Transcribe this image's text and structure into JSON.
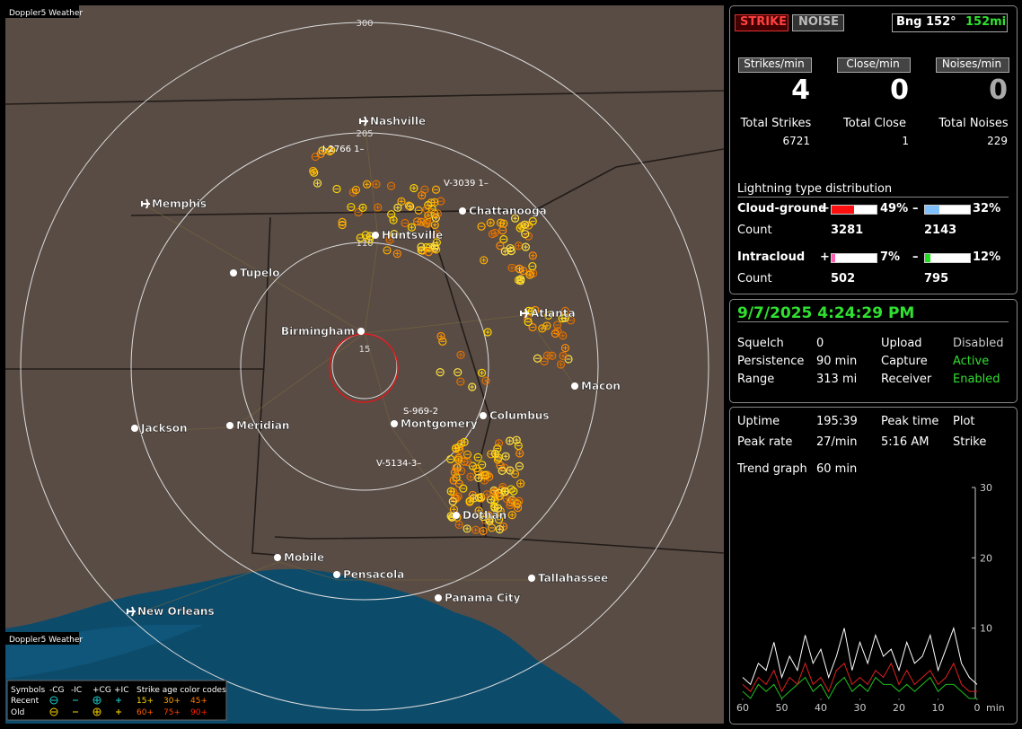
{
  "window_title": "Doppler5 Weather",
  "map": {
    "ring_labels": [
      "300",
      "205",
      "110",
      "15"
    ],
    "cities": [
      "Nashville",
      "Memphis",
      "Chattanooga",
      "Huntsville",
      "Tupelo",
      "Atlanta",
      "Birmingham",
      "Macon",
      "Columbus",
      "Montgomery",
      "Jackson",
      "Meridian",
      "Dothan",
      "Mobile",
      "Pensacola",
      "Tallahassee",
      "Panama City",
      "New Orleans"
    ],
    "strike_labels": [
      "I-2766 1–",
      "V-3039 1–",
      "S-969-2",
      "V-5134-3–"
    ],
    "legend": {
      "symbols": "Symbols",
      "cols": [
        "-CG",
        "-IC",
        "+CG",
        "+IC"
      ],
      "age_title": "Strike age color codes",
      "rows": [
        {
          "label": "Recent",
          "ages": [
            "15+",
            "30+",
            "45+"
          ]
        },
        {
          "label": "Old",
          "ages": [
            "60+",
            "75+",
            "90+"
          ]
        }
      ]
    }
  },
  "status": {
    "strike": "STRIKE",
    "noise": "NOISE",
    "bearing": "Bng 152°",
    "distance": "152mi"
  },
  "rates": [
    {
      "label": "Strikes/min",
      "value": 4,
      "total_label": "Total Strikes",
      "total": 6721
    },
    {
      "label": "Close/min",
      "value": 0,
      "total_label": "Total Close",
      "total": 1
    },
    {
      "label": "Noises/min",
      "value": 0,
      "total_label": "Total Noises",
      "total": 229
    }
  ],
  "distribution": {
    "title": "Lightning type distribution",
    "count_label": "Count",
    "types": [
      {
        "name": "Cloud-ground",
        "pos": {
          "sign": "+",
          "pct": 49,
          "label": "49%",
          "count": 3281
        },
        "neg": {
          "sign": "–",
          "pct": 32,
          "label": "32%",
          "count": 2143
        }
      },
      {
        "name": "Intracloud",
        "pos": {
          "sign": "+",
          "pct": 7,
          "label": "7%",
          "count": 502
        },
        "neg": {
          "sign": "–",
          "pct": 12,
          "label": "12%",
          "count": 795
        }
      }
    ]
  },
  "settings": {
    "datetime": "9/7/2025 4:24:29 PM",
    "rows": [
      [
        "Squelch",
        "0",
        "Upload",
        "Disabled"
      ],
      [
        "Persistence",
        "90 min",
        "Capture",
        "Active"
      ],
      [
        "Range",
        "313 mi",
        "Receiver",
        "Enabled"
      ]
    ]
  },
  "stats": {
    "rows": [
      [
        "Uptime",
        "195:39",
        "Peak time",
        "Plot"
      ],
      [
        "Peak rate",
        "27/min",
        "5:16 AM",
        "Strike"
      ]
    ],
    "trend_label": "Trend graph",
    "trend_value": "60 min"
  },
  "chart_data": {
    "type": "line",
    "xlabel": "min",
    "x": [
      60,
      58,
      56,
      54,
      52,
      50,
      48,
      46,
      44,
      42,
      40,
      38,
      36,
      34,
      32,
      30,
      28,
      26,
      24,
      22,
      20,
      18,
      16,
      14,
      12,
      10,
      8,
      6,
      4,
      2,
      0
    ],
    "xlim": [
      60,
      0
    ],
    "xticks": [
      60,
      50,
      40,
      30,
      20,
      10,
      0
    ],
    "ylim": [
      0,
      30
    ],
    "yticks": [
      10,
      20,
      30
    ],
    "series": [
      {
        "color": "#ffffff",
        "values": [
          3,
          2,
          5,
          4,
          8,
          3,
          6,
          4,
          9,
          5,
          7,
          3,
          6,
          10,
          4,
          8,
          5,
          9,
          6,
          7,
          4,
          8,
          5,
          6,
          9,
          4,
          7,
          10,
          5,
          3,
          2
        ]
      },
      {
        "color": "#e02020",
        "values": [
          2,
          1,
          3,
          2,
          4,
          1,
          3,
          2,
          5,
          2,
          3,
          1,
          4,
          5,
          2,
          3,
          2,
          4,
          3,
          5,
          2,
          4,
          2,
          3,
          4,
          2,
          3,
          5,
          2,
          1,
          1
        ]
      },
      {
        "color": "#20c020",
        "values": [
          1,
          0,
          2,
          1,
          2,
          0,
          1,
          2,
          3,
          1,
          2,
          0,
          2,
          3,
          1,
          2,
          1,
          3,
          2,
          2,
          1,
          2,
          1,
          2,
          3,
          1,
          2,
          2,
          1,
          0,
          0
        ]
      }
    ]
  }
}
